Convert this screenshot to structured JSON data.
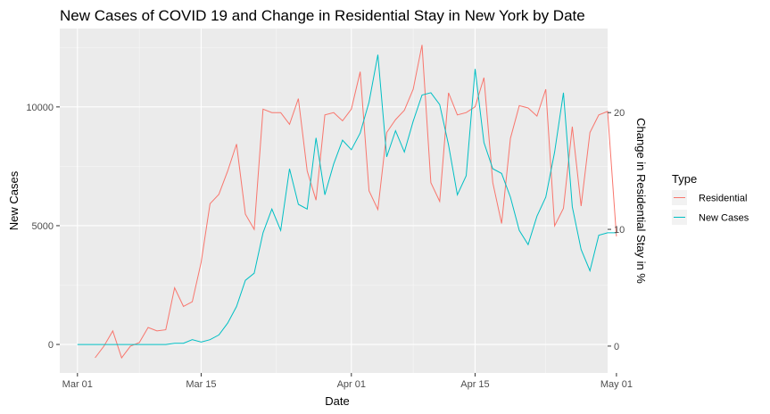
{
  "chart_data": {
    "type": "line",
    "title": "New Cases of COVID 19 and Change in Residential Stay in New York by Date",
    "xlabel": "Date",
    "ylabel": "New Cases",
    "y2label": "Change in Residential Stay in %",
    "x_ticks": [
      "Mar 01",
      "Mar 15",
      "Apr 01",
      "Apr 15",
      "May 01"
    ],
    "y_ticks": [
      0,
      5000,
      10000
    ],
    "y2_ticks": [
      0,
      10,
      20
    ],
    "xlim": [
      -1,
      61
    ],
    "ylim": [
      -1200,
      13300
    ],
    "y2lim": [
      -2.3,
      27.2
    ],
    "grid": true,
    "legend": {
      "title": "Type",
      "position": "right"
    },
    "series": [
      {
        "name": "Residential",
        "color": "#F8766D",
        "axis": "right",
        "points": [
          [
            3,
            -1
          ],
          [
            4,
            0
          ],
          [
            5,
            1.3
          ],
          [
            6,
            -1
          ],
          [
            7,
            0
          ],
          [
            8,
            0.3
          ],
          [
            9,
            1.6
          ],
          [
            10,
            1.3
          ],
          [
            11,
            1.4
          ],
          [
            12,
            5
          ],
          [
            13,
            3.4
          ],
          [
            14,
            3.8
          ],
          [
            15,
            7.2
          ],
          [
            16,
            12.2
          ],
          [
            17,
            13
          ],
          [
            18,
            15
          ],
          [
            19,
            17.3
          ],
          [
            20,
            11.3
          ],
          [
            21,
            10
          ],
          [
            22,
            20.3
          ],
          [
            23,
            20
          ],
          [
            24,
            20
          ],
          [
            25,
            19
          ],
          [
            26,
            21.2
          ],
          [
            27,
            15
          ],
          [
            28,
            12.5
          ],
          [
            29,
            19.8
          ],
          [
            30,
            20
          ],
          [
            31,
            19.3
          ],
          [
            32,
            20.3
          ],
          [
            33,
            23.5
          ],
          [
            34,
            13.3
          ],
          [
            35,
            11.7
          ],
          [
            36,
            18.3
          ],
          [
            37,
            19.4
          ],
          [
            38,
            20.2
          ],
          [
            39,
            22
          ],
          [
            40,
            25.8
          ],
          [
            41,
            14
          ],
          [
            42,
            12.4
          ],
          [
            43,
            21.7
          ],
          [
            44,
            19.8
          ],
          [
            45,
            20
          ],
          [
            46,
            20.5
          ],
          [
            47,
            23
          ],
          [
            48,
            14
          ],
          [
            49,
            10.5
          ],
          [
            50,
            17.8
          ],
          [
            51,
            20.6
          ],
          [
            52,
            20.4
          ],
          [
            53,
            19.7
          ],
          [
            54,
            22
          ],
          [
            55,
            10.3
          ],
          [
            56,
            11.8
          ],
          [
            57,
            18.8
          ],
          [
            58,
            12
          ],
          [
            59,
            18.3
          ],
          [
            60,
            19.8
          ],
          [
            61,
            20.1
          ],
          [
            62,
            9.4
          ]
        ]
      },
      {
        "name": "New Cases",
        "color": "#00BFC4",
        "axis": "left",
        "points": [
          [
            1,
            0
          ],
          [
            2,
            0
          ],
          [
            3,
            0
          ],
          [
            4,
            0
          ],
          [
            5,
            0
          ],
          [
            6,
            0
          ],
          [
            7,
            0
          ],
          [
            8,
            0
          ],
          [
            9,
            0
          ],
          [
            10,
            0
          ],
          [
            11,
            0
          ],
          [
            12,
            50
          ],
          [
            13,
            50
          ],
          [
            14,
            200
          ],
          [
            15,
            100
          ],
          [
            16,
            200
          ],
          [
            17,
            400
          ],
          [
            18,
            900
          ],
          [
            19,
            1600
          ],
          [
            20,
            2700
          ],
          [
            21,
            3000
          ],
          [
            22,
            4700
          ],
          [
            23,
            5700
          ],
          [
            24,
            4800
          ],
          [
            25,
            7400
          ],
          [
            26,
            5900
          ],
          [
            27,
            5700
          ],
          [
            28,
            8700
          ],
          [
            29,
            6300
          ],
          [
            30,
            7600
          ],
          [
            31,
            8600
          ],
          [
            32,
            8200
          ],
          [
            33,
            8900
          ],
          [
            34,
            10200
          ],
          [
            35,
            12200
          ],
          [
            36,
            7900
          ],
          [
            37,
            9000
          ],
          [
            38,
            8100
          ],
          [
            39,
            9400
          ],
          [
            40,
            10500
          ],
          [
            41,
            10600
          ],
          [
            42,
            10100
          ],
          [
            43,
            8400
          ],
          [
            44,
            6300
          ],
          [
            45,
            7100
          ],
          [
            46,
            11600
          ],
          [
            47,
            8500
          ],
          [
            48,
            7400
          ],
          [
            49,
            7200
          ],
          [
            50,
            6200
          ],
          [
            51,
            4800
          ],
          [
            52,
            4200
          ],
          [
            53,
            5400
          ],
          [
            54,
            6200
          ],
          [
            55,
            8100
          ],
          [
            56,
            10600
          ],
          [
            57,
            5800
          ],
          [
            58,
            4000
          ],
          [
            59,
            3100
          ],
          [
            60,
            4600
          ],
          [
            61,
            4700
          ],
          [
            62,
            4700
          ]
        ]
      }
    ]
  }
}
